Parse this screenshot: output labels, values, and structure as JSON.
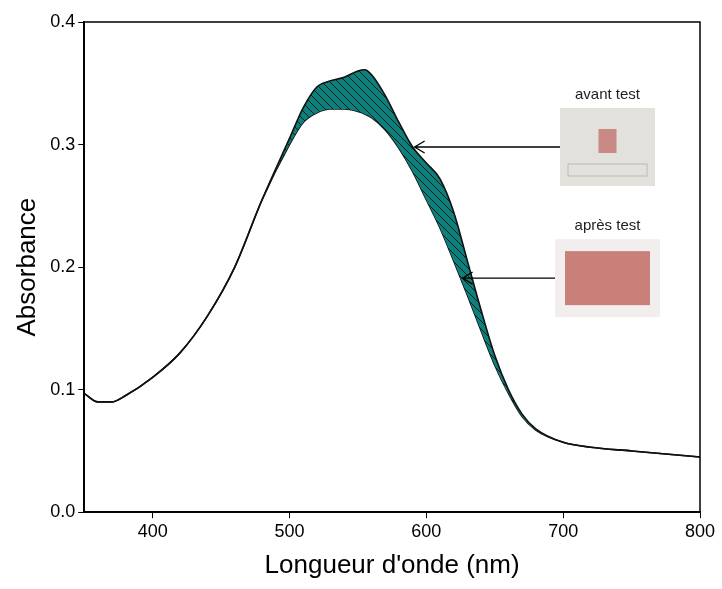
{
  "chart_data": {
    "type": "line",
    "x_label": "Longueur d'onde (nm)",
    "y_label": "Absorbance",
    "x": [
      350,
      360,
      370,
      380,
      400,
      420,
      440,
      460,
      480,
      500,
      510,
      520,
      530,
      540,
      550,
      555,
      560,
      570,
      580,
      590,
      600,
      610,
      620,
      630,
      640,
      650,
      660,
      670,
      680,
      700,
      720,
      750,
      800
    ],
    "series": [
      {
        "color": "#111111",
        "values": [
          0.097,
          0.09,
          0.09,
          0.095,
          0.11,
          0.13,
          0.16,
          0.2,
          0.255,
          0.305,
          0.33,
          0.347,
          0.352,
          0.355,
          0.36,
          0.361,
          0.357,
          0.34,
          0.318,
          0.298,
          0.285,
          0.272,
          0.245,
          0.205,
          0.165,
          0.128,
          0.1,
          0.08,
          0.068,
          0.057,
          0.053,
          0.05,
          0.045
        ]
      },
      {
        "color": "#111111",
        "values": [
          0.097,
          0.09,
          0.09,
          0.095,
          0.11,
          0.13,
          0.16,
          0.2,
          0.255,
          0.3,
          0.318,
          0.326,
          0.329,
          0.329,
          0.327,
          0.325,
          0.322,
          0.312,
          0.297,
          0.278,
          0.255,
          0.232,
          0.205,
          0.177,
          0.148,
          0.12,
          0.097,
          0.078,
          0.067,
          0.057,
          0.053,
          0.05,
          0.045
        ]
      }
    ],
    "color": "#0f7f7c",
    "xlim": [
      350,
      800
    ],
    "xticks": [
      400,
      500,
      600,
      700,
      800
    ],
    "ylim": [
      0,
      0.4
    ],
    "yticks": [
      {
        "value": 0,
        "label": "0.0"
      },
      {
        "value": 0.1,
        "label": "0.1"
      },
      {
        "value": 0.2,
        "label": "0.2"
      },
      {
        "value": 0.3,
        "label": "0.3"
      },
      {
        "value": 0.4,
        "label": "0.4"
      }
    ],
    "grid": false,
    "annotations": [
      {
        "text": "avant test",
        "x": 590
      },
      {
        "text": "après test",
        "x": 625
      }
    ]
  }
}
